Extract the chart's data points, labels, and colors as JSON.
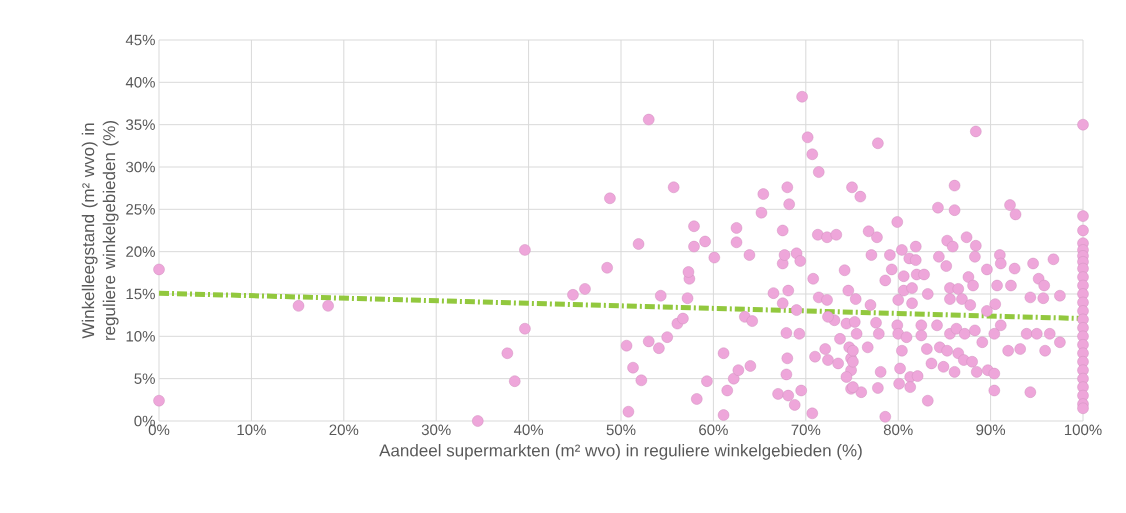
{
  "chart_data": {
    "type": "scatter",
    "xlabel": "Aandeel supermarkten (m² wvo) in reguliere winkelgebieden (%)",
    "ylabel": "Winkelleegstand (m² wvo) in reguliere winkelgebieden (%)",
    "xlim": [
      0,
      100
    ],
    "ylim": [
      0,
      45
    ],
    "xticks": [
      {
        "value": 0,
        "label": "0%"
      },
      {
        "value": 10,
        "label": "10%"
      },
      {
        "value": 20,
        "label": "20%"
      },
      {
        "value": 30,
        "label": "30%"
      },
      {
        "value": 40,
        "label": "40%"
      },
      {
        "value": 50,
        "label": "50%"
      },
      {
        "value": 60,
        "label": "60%"
      },
      {
        "value": 70,
        "label": "70%"
      },
      {
        "value": 80,
        "label": "80%"
      },
      {
        "value": 90,
        "label": "90%"
      },
      {
        "value": 100,
        "label": "100%"
      }
    ],
    "yticks": [
      {
        "value": 0,
        "label": "0%"
      },
      {
        "value": 5,
        "label": "5%"
      },
      {
        "value": 10,
        "label": "10%"
      },
      {
        "value": 15,
        "label": "15%"
      },
      {
        "value": 20,
        "label": "20%"
      },
      {
        "value": 25,
        "label": "25%"
      },
      {
        "value": 30,
        "label": "30%"
      },
      {
        "value": 35,
        "label": "35%"
      },
      {
        "value": 40,
        "label": "40%"
      },
      {
        "value": 45,
        "label": "45%"
      }
    ],
    "grid": true,
    "series": [
      {
        "color": "#eea6da",
        "marker": "circle",
        "x": [
          0,
          0,
          15.1,
          18.3,
          34.5,
          37.7,
          38.5,
          39.6,
          39.6,
          44.8,
          46.1,
          48.5,
          48.8,
          50.6,
          51.3,
          50.8,
          51.9,
          52.2,
          53.0,
          53.0,
          54.1,
          55.0,
          54.3,
          55.7,
          56.1,
          56.7,
          57.2,
          57.4,
          57.3,
          57.9,
          57.9,
          59.1,
          58.2,
          59.3,
          60.1,
          61.1,
          61.1,
          61.5,
          62.2,
          62.7,
          64.0,
          62.5,
          62.5,
          63.9,
          63.4,
          64.2,
          65.2,
          65.4,
          66.5,
          67.5,
          68.0,
          68.2,
          67.5,
          67.7,
          69.0,
          69.4,
          68.1,
          67.5,
          69.0,
          67.9,
          69.3,
          68.0,
          67.9,
          67.0,
          68.1,
          69.5,
          68.8,
          70.7,
          69.6,
          70.2,
          70.7,
          71.4,
          70.8,
          71.4,
          72.3,
          71.3,
          72.3,
          73.3,
          74.2,
          75.0,
          71.0,
          72.1,
          72.4,
          73.5,
          73.1,
          72.4,
          73.7,
          74.4,
          74.6,
          75.4,
          74.7,
          74.9,
          74.9,
          74.9,
          75.5,
          77.8,
          75.9,
          88.4,
          86.1,
          84.3,
          86.1,
          92.1,
          92.7,
          79.9,
          76.8,
          77.7,
          77.1,
          79.1,
          80.4,
          81.9,
          81.2,
          81.9,
          84.4,
          85.3,
          85.9,
          87.4,
          88.4,
          88.3,
          85.2,
          89.6,
          91.0,
          91.1,
          92.6,
          94.6,
          96.8,
          95.2,
          95.8,
          97.5,
          78.6,
          79.3,
          80.6,
          82.0,
          82.8,
          80.6,
          81.5,
          83.2,
          80.0,
          81.5,
          85.6,
          86.5,
          87.6,
          88.1,
          86.9,
          85.6,
          87.8,
          90.7,
          92.2,
          90.5,
          89.6,
          94.3,
          95.7,
          77.0,
          75.3,
          77.6,
          77.9,
          76.7,
          79.9,
          80.0,
          80.9,
          80.4,
          82.5,
          82.5,
          83.1,
          84.2,
          85.6,
          86.3,
          87.2,
          88.3,
          84.5,
          85.3,
          86.5,
          87.1,
          88.0,
          89.1,
          90.4,
          91.1,
          91.9,
          93.2,
          93.9,
          95.0,
          95.9,
          96.4,
          97.5,
          83.6,
          84.9,
          86.1,
          88.5,
          89.7,
          90.4,
          90.4,
          80.2,
          80.1,
          81.3,
          81.3,
          82.1,
          78.1,
          77.8,
          76.0,
          75.1,
          74.4,
          83.2,
          78.6,
          94.3,
          75.1,
          75.1,
          100,
          100,
          100,
          100,
          100,
          100,
          100,
          100,
          100,
          100,
          100,
          100,
          100,
          100,
          100,
          100,
          100,
          100,
          100,
          100,
          100,
          100,
          100,
          100,
          100
        ],
        "values": [
          17.9,
          2.4,
          13.6,
          13.6,
          0,
          8.0,
          4.7,
          20.2,
          10.9,
          14.9,
          15.6,
          18.1,
          26.3,
          8.9,
          6.3,
          1.1,
          20.9,
          4.8,
          35.6,
          9.4,
          8.6,
          9.9,
          14.8,
          27.6,
          11.5,
          12.1,
          14.5,
          16.8,
          17.6,
          20.6,
          23.0,
          21.2,
          2.6,
          4.7,
          19.3,
          0.7,
          8.0,
          3.6,
          5.0,
          6.0,
          6.5,
          22.8,
          21.1,
          19.6,
          12.3,
          11.8,
          24.6,
          26.8,
          15.1,
          22.5,
          27.6,
          25.6,
          18.6,
          19.6,
          19.8,
          18.9,
          15.4,
          13.9,
          13.1,
          10.4,
          10.3,
          7.4,
          5.5,
          3.2,
          3.0,
          3.6,
          1.9,
          0.9,
          38.3,
          33.5,
          31.5,
          29.4,
          16.8,
          14.6,
          14.3,
          22.0,
          21.7,
          22.0,
          17.8,
          27.6,
          7.6,
          8.5,
          7.2,
          6.8,
          11.9,
          12.3,
          9.7,
          11.5,
          15.4,
          14.4,
          8.7,
          6.0,
          3.8,
          7.4,
          10.3,
          32.8,
          26.5,
          34.2,
          27.8,
          25.2,
          24.9,
          25.5,
          24.4,
          23.5,
          22.4,
          21.7,
          19.6,
          19.6,
          20.2,
          20.6,
          19.2,
          19.0,
          19.4,
          21.3,
          20.6,
          21.7,
          20.7,
          19.4,
          18.3,
          17.9,
          19.6,
          18.6,
          18.0,
          18.6,
          19.1,
          16.8,
          16.0,
          14.8,
          16.6,
          17.9,
          17.1,
          17.3,
          17.3,
          15.4,
          15.7,
          15.0,
          14.3,
          13.9,
          15.7,
          15.6,
          17.0,
          16.0,
          14.4,
          14.4,
          13.7,
          16.0,
          16.0,
          13.8,
          13.0,
          14.6,
          14.5,
          13.7,
          11.7,
          11.6,
          10.3,
          8.7,
          11.3,
          10.3,
          9.9,
          8.3,
          11.3,
          10.1,
          8.5,
          11.3,
          10.3,
          10.9,
          10.3,
          10.7,
          8.7,
          8.3,
          8.0,
          7.2,
          7.0,
          9.3,
          10.3,
          11.3,
          8.3,
          8.5,
          10.3,
          10.3,
          8.3,
          10.3,
          9.3,
          6.8,
          6.4,
          5.8,
          5.8,
          6.0,
          5.6,
          3.6,
          6.2,
          4.4,
          5.2,
          4.0,
          5.3,
          5.8,
          3.9,
          3.4,
          4.0,
          5.2,
          2.4,
          0.5,
          3.4,
          8.3,
          7.0,
          35.0,
          24.2,
          22.5,
          21.0,
          20.2,
          19.5,
          18.8,
          18.0,
          17.0,
          16.0,
          15.0,
          14.0,
          13.0,
          12.0,
          11.0,
          10.0,
          9.0,
          8.0,
          7.0,
          6.0,
          5.0,
          4.0,
          3.0,
          2.0,
          1.5
        ]
      },
      {
        "type": "line",
        "color": "#92c83e",
        "line_style": "dashed",
        "marker": "none",
        "x": [
          0,
          100
        ],
        "values": [
          15.1,
          12.1
        ]
      }
    ]
  }
}
